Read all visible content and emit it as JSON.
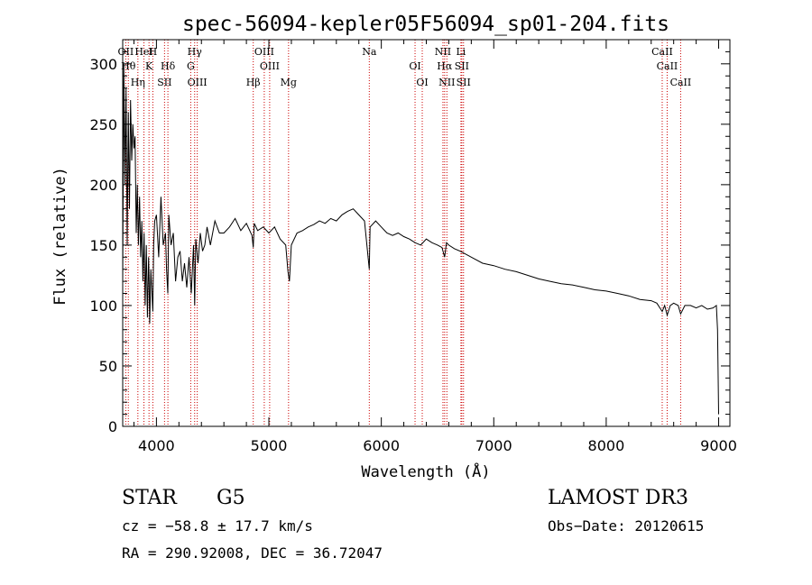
{
  "chart_data": {
    "type": "line",
    "title": "spec-56094-kepler05F56094_sp01-204.fits",
    "xlabel": "Wavelength (Å)",
    "ylabel": "Flux (relative)",
    "xlim": [
      3700,
      9100
    ],
    "ylim": [
      0,
      320
    ],
    "x_ticks": [
      4000,
      5000,
      6000,
      7000,
      8000,
      9000
    ],
    "y_ticks": [
      0,
      50,
      100,
      150,
      200,
      250,
      300
    ],
    "series": [
      {
        "name": "flux",
        "x": [
          3700,
          3710,
          3720,
          3730,
          3740,
          3750,
          3760,
          3770,
          3780,
          3790,
          3800,
          3810,
          3820,
          3830,
          3840,
          3850,
          3860,
          3870,
          3880,
          3890,
          3900,
          3910,
          3920,
          3930,
          3935,
          3940,
          3950,
          3960,
          3968,
          3975,
          3985,
          4000,
          4020,
          4040,
          4060,
          4080,
          4090,
          4101,
          4110,
          4130,
          4150,
          4170,
          4190,
          4210,
          4230,
          4250,
          4270,
          4290,
          4310,
          4330,
          4340,
          4350,
          4370,
          4390,
          4410,
          4430,
          4450,
          4480,
          4520,
          4560,
          4600,
          4650,
          4700,
          4750,
          4800,
          4850,
          4861,
          4870,
          4900,
          4950,
          5000,
          5050,
          5100,
          5150,
          5170,
          5183,
          5200,
          5250,
          5300,
          5350,
          5400,
          5450,
          5500,
          5550,
          5600,
          5650,
          5700,
          5750,
          5800,
          5850,
          5893,
          5900,
          5950,
          6000,
          6050,
          6100,
          6150,
          6200,
          6250,
          6300,
          6350,
          6400,
          6450,
          6500,
          6540,
          6563,
          6580,
          6600,
          6650,
          6700,
          6800,
          6900,
          7000,
          7100,
          7200,
          7300,
          7400,
          7500,
          7600,
          7700,
          7800,
          7900,
          8000,
          8100,
          8200,
          8300,
          8400,
          8450,
          8498,
          8520,
          8542,
          8570,
          8600,
          8640,
          8662,
          8700,
          8750,
          8800,
          8850,
          8900,
          8950,
          8980,
          8990,
          8996,
          9000
        ],
        "y": [
          120,
          300,
          200,
          280,
          150,
          260,
          180,
          270,
          220,
          250,
          230,
          240,
          160,
          200,
          150,
          190,
          140,
          170,
          120,
          160,
          100,
          150,
          90,
          140,
          120,
          85,
          130,
          110,
          95,
          150,
          170,
          175,
          140,
          190,
          150,
          160,
          130,
          110,
          175,
          150,
          160,
          120,
          140,
          145,
          120,
          135,
          115,
          140,
          110,
          150,
          100,
          155,
          135,
          160,
          145,
          150,
          165,
          150,
          170,
          160,
          160,
          165,
          172,
          162,
          168,
          158,
          148,
          168,
          162,
          165,
          160,
          165,
          155,
          150,
          128,
          120,
          150,
          160,
          162,
          165,
          167,
          170,
          168,
          172,
          170,
          175,
          178,
          180,
          175,
          170,
          130,
          165,
          170,
          165,
          160,
          158,
          160,
          157,
          155,
          152,
          150,
          155,
          152,
          150,
          148,
          140,
          152,
          150,
          147,
          145,
          140,
          135,
          133,
          130,
          128,
          125,
          122,
          120,
          118,
          117,
          115,
          113,
          112,
          110,
          108,
          105,
          104,
          102,
          95,
          100,
          92,
          100,
          102,
          100,
          93,
          100,
          100,
          98,
          100,
          97,
          98,
          100,
          80,
          40,
          10
        ],
        "color": "#000000"
      }
    ],
    "lines": [
      {
        "label": "OII",
        "wavelength": 3727
      },
      {
        "label": "Hθ",
        "wavelength": 3750
      },
      {
        "label": "Hη",
        "wavelength": 3835
      },
      {
        "label": "HeI",
        "wavelength": 3889
      },
      {
        "label": "K",
        "wavelength": 3934
      },
      {
        "label": "SII",
        "wavelength": 4072
      },
      {
        "label": "H",
        "wavelength": 3968
      },
      {
        "label": "Hδ",
        "wavelength": 4102
      },
      {
        "label": "OIII",
        "wavelength": 4363
      },
      {
        "label": "Hγ",
        "wavelength": 4340
      },
      {
        "label": "G",
        "wavelength": 4305
      },
      {
        "label": "Hβ",
        "wavelength": 4861
      },
      {
        "label": "OIII",
        "wavelength": 4959
      },
      {
        "label": "OIII",
        "wavelength": 5007
      },
      {
        "label": "Mg",
        "wavelength": 5175
      },
      {
        "label": "Na",
        "wavelength": 5893
      },
      {
        "label": "OI",
        "wavelength": 6300
      },
      {
        "label": "OI",
        "wavelength": 6364
      },
      {
        "label": "NII",
        "wavelength": 6548
      },
      {
        "label": "Hα",
        "wavelength": 6563
      },
      {
        "label": "NII",
        "wavelength": 6583
      },
      {
        "label": "Li",
        "wavelength": 6708
      },
      {
        "label": "SII",
        "wavelength": 6716
      },
      {
        "label": "SII",
        "wavelength": 6731
      },
      {
        "label": "CaII",
        "wavelength": 8498
      },
      {
        "label": "CaII",
        "wavelength": 8542
      },
      {
        "label": "CaII",
        "wavelength": 8662
      }
    ],
    "line_color": "#cc0000"
  },
  "info": {
    "class": "STAR",
    "subclass": "G5",
    "survey": "LAMOST DR3",
    "cz": "cz = −58.8 ± 17.7 km/s",
    "obs_date": "Obs−Date: 20120615",
    "coords": "RA = 290.92008, DEC =  36.72047"
  }
}
